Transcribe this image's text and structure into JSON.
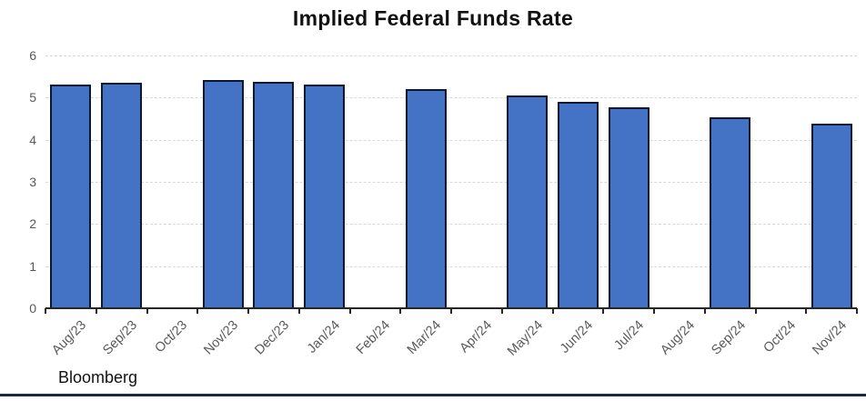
{
  "chart_data": {
    "type": "bar",
    "title": "Implied Federal Funds Rate",
    "source_label": "Bloomberg",
    "categories": [
      "Aug/23",
      "Sep/23",
      "Oct/23",
      "Nov/23",
      "Dec/23",
      "Jan/24",
      "Feb/24",
      "Mar/24",
      "Apr/24",
      "May/24",
      "Jun/24",
      "Jul/24",
      "Aug/24",
      "Sep/24",
      "Oct/24",
      "Nov/24"
    ],
    "values": [
      5.31,
      5.35,
      null,
      5.42,
      5.38,
      5.31,
      null,
      5.21,
      null,
      5.06,
      4.91,
      4.76,
      null,
      4.54,
      null,
      4.39
    ],
    "xlabel": "",
    "ylabel": "",
    "ylim": [
      0,
      6
    ],
    "yticks": [
      0,
      1,
      2,
      3,
      4,
      5,
      6
    ],
    "grid": "horizontal-dashed",
    "legend": "none",
    "colors": {
      "bar_fill": "#4472C4",
      "bar_border": "#0D1830",
      "gridline": "#D9D9D9",
      "axis_line": "#262626",
      "tick_label": "#595959",
      "title": "#111111",
      "source": "#111111",
      "bottom_rule": "#1A2744"
    }
  }
}
